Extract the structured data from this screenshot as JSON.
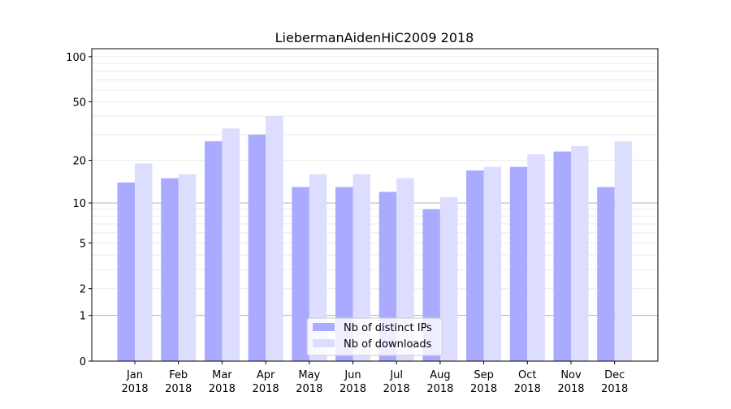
{
  "chart_data": {
    "type": "bar",
    "title": "LiebermanAidenHiC2009 2018",
    "xlabel": "",
    "ylabel": "",
    "yscale": "log10(y+1)",
    "ylim": [
      0,
      113
    ],
    "yticks": [
      0,
      1,
      2,
      5,
      10,
      20,
      50,
      100
    ],
    "categories": [
      "Jan\n2018",
      "Feb\n2018",
      "Mar\n2018",
      "Apr\n2018",
      "May\n2018",
      "Jun\n2018",
      "Jul\n2018",
      "Aug\n2018",
      "Sep\n2018",
      "Oct\n2018",
      "Nov\n2018",
      "Dec\n2018"
    ],
    "series": [
      {
        "name": "Nb of distinct IPs",
        "color": "#aaaaff",
        "values": [
          14,
          15,
          27,
          30,
          13,
          13,
          12,
          9,
          17,
          18,
          23,
          13
        ]
      },
      {
        "name": "Nb of downloads",
        "color": "#ddddff",
        "values": [
          19,
          16,
          33,
          40,
          16,
          16,
          15,
          11,
          18,
          22,
          25,
          27
        ]
      }
    ],
    "legend": "bottom-center",
    "grid": true
  }
}
